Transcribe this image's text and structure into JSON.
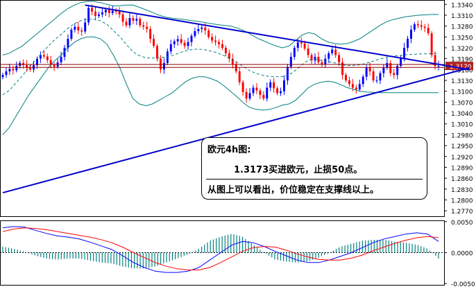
{
  "colors": {
    "background": "#ffffff",
    "up_candle": "#0000ff",
    "down_candle": "#ff0000",
    "bollinger": "#008080",
    "trendline": "#0000cc",
    "price_marker_bg": "#b22222",
    "macd_line": "#0000ff",
    "signal_line": "#ff0000",
    "histogram": "#008080",
    "axis_text": "#000000"
  },
  "annotation": {
    "title": "欧元4h图:",
    "line1": "1.3173买进欧元，止损50点。",
    "line2": "从图上可以看出，价位稳定在支撑线以上。"
  },
  "chart_data": [
    {
      "type": "candlestick",
      "title": "",
      "y_ticks": [
        "1.3340",
        "1.3310",
        "1.3280",
        "1.3250",
        "1.3220",
        "1.3190",
        "1.3160",
        "1.3130",
        "1.3100",
        "1.3070",
        "1.3040",
        "1.3010",
        "1.2980",
        "1.2950",
        "1.2920",
        "1.2890",
        "1.2860",
        "1.2830",
        "1.2800",
        "1.2770"
      ],
      "ylim": [
        1.2755,
        1.3352
      ],
      "current_price_label": "1.3170",
      "current_price": 1.317,
      "grid": false,
      "candles_close": [
        1.3145,
        1.3155,
        1.3162,
        1.3158,
        1.317,
        1.3178,
        1.3172,
        1.3165,
        1.316,
        1.3172,
        1.319,
        1.32,
        1.3196,
        1.3186,
        1.3173,
        1.3168,
        1.318,
        1.3195,
        1.322,
        1.3245,
        1.327,
        1.3278,
        1.3268,
        1.3265,
        1.329,
        1.333,
        1.332,
        1.3308,
        1.3312,
        1.3318,
        1.3325,
        1.3316,
        1.3322,
        1.332,
        1.3312,
        1.3292,
        1.3282,
        1.3302,
        1.3295,
        1.33,
        1.3282,
        1.3278,
        1.3272,
        1.3245,
        1.3225,
        1.319,
        1.316,
        1.3178,
        1.321,
        1.323,
        1.3238,
        1.3244,
        1.3234,
        1.3225,
        1.3236,
        1.3253,
        1.3266,
        1.3272,
        1.3276,
        1.3268,
        1.325,
        1.324,
        1.3236,
        1.323,
        1.322,
        1.3205,
        1.319,
        1.3175,
        1.3155,
        1.3125,
        1.3098,
        1.308,
        1.3095,
        1.311,
        1.3102,
        1.309,
        1.308,
        1.311,
        1.3125,
        1.3108,
        1.3095,
        1.31,
        1.313,
        1.3168,
        1.3195,
        1.322,
        1.3235,
        1.3232,
        1.3218,
        1.32,
        1.3185,
        1.3195,
        1.318,
        1.3175,
        1.319,
        1.3205,
        1.3215,
        1.32,
        1.318,
        1.3145,
        1.313,
        1.312,
        1.311,
        1.3105,
        1.312,
        1.314,
        1.3165,
        1.3155,
        1.313,
        1.313,
        1.315,
        1.3165,
        1.3178,
        1.315,
        1.3145,
        1.317,
        1.319,
        1.322,
        1.3245,
        1.327,
        1.3285,
        1.3282,
        1.3278,
        1.3275,
        1.326,
        1.32,
        1.317,
        1.317
      ],
      "upper_band": [
        1.32,
        1.3205,
        1.3215,
        1.3225,
        1.324,
        1.3255,
        1.327,
        1.3285,
        1.33,
        1.3315,
        1.3328,
        1.3338,
        1.3345,
        1.3348,
        1.3348,
        1.3345,
        1.334,
        1.3336,
        1.3336,
        1.3338,
        1.3338,
        1.3332,
        1.3325,
        1.3318,
        1.331,
        1.3305,
        1.3302,
        1.33,
        1.3298,
        1.3295,
        1.3293,
        1.329,
        1.3287,
        1.3284,
        1.3282,
        1.328,
        1.3275,
        1.3268,
        1.3258,
        1.3248,
        1.324,
        1.3232,
        1.3225,
        1.322,
        1.3225,
        1.324,
        1.3255,
        1.3262,
        1.3258,
        1.3245,
        1.3236,
        1.3232,
        1.323,
        1.3232,
        1.3238,
        1.3246,
        1.3258,
        1.327,
        1.3282,
        1.3292,
        1.3298,
        1.3302,
        1.3306,
        1.3308,
        1.331,
        1.3311,
        1.3312,
        1.3312
      ],
      "lower_band": [
        1.298,
        1.3,
        1.303,
        1.306,
        1.309,
        1.3115,
        1.314,
        1.3165,
        1.3185,
        1.32,
        1.322,
        1.3235,
        1.3245,
        1.325,
        1.325,
        1.3245,
        1.323,
        1.32,
        1.3165,
        1.312,
        1.308,
        1.3065,
        1.306,
        1.3065,
        1.3075,
        1.3085,
        1.3095,
        1.311,
        1.3125,
        1.3135,
        1.314,
        1.314,
        1.3135,
        1.3128,
        1.3115,
        1.31,
        1.3085,
        1.3068,
        1.3055,
        1.305,
        1.3048,
        1.305,
        1.3055,
        1.3062,
        1.3065,
        1.3075,
        1.3092,
        1.311,
        1.312,
        1.3125,
        1.3128,
        1.3125,
        1.3118,
        1.311,
        1.3105,
        1.31,
        1.3098,
        1.3097,
        1.3096,
        1.3096,
        1.3096,
        1.3096,
        1.3096,
        1.3096,
        1.3096,
        1.3096,
        1.3096,
        1.3096
      ],
      "trendline_resistance": {
        "start": {
          "bar": 24,
          "price": 1.3338
        },
        "end": {
          "bar": 136,
          "price": 1.316
        }
      },
      "trendline_support": {
        "start": {
          "bar": 0,
          "price": 1.282
        },
        "end": {
          "bar": 136,
          "price": 1.3165
        }
      }
    },
    {
      "type": "macd",
      "y_ticks": [
        "0.0050",
        "0.0000",
        "-0.0050"
      ],
      "ylim": [
        -0.0052,
        0.0052
      ],
      "macd": [
        0.004,
        0.0042,
        0.0041,
        0.0036,
        0.0031,
        0.0027,
        0.0025,
        0.0022,
        0.0017,
        0.0011,
        0.0005,
        -0.0005,
        -0.0016,
        -0.0024,
        -0.003,
        -0.0032,
        -0.0032,
        -0.003,
        -0.0024,
        -0.0012,
        0.0,
        0.0012,
        0.0018,
        0.0016,
        0.001,
        0.0002,
        -0.0005,
        -0.0012,
        -0.0016,
        -0.0016,
        -0.0012,
        -0.0006,
        0.0,
        0.0008,
        0.0016,
        0.0022,
        0.0026,
        0.003,
        0.0032,
        0.003,
        0.0018
      ],
      "signal": [
        0.0034,
        0.0038,
        0.004,
        0.0039,
        0.0037,
        0.0034,
        0.0031,
        0.0028,
        0.0025,
        0.0021,
        0.0016,
        0.0009,
        0.0,
        -0.0008,
        -0.0016,
        -0.0022,
        -0.0026,
        -0.0028,
        -0.0028,
        -0.0024,
        -0.0016,
        -0.0007,
        0.0002,
        0.0008,
        0.001,
        0.0009,
        0.0004,
        -0.0002,
        -0.0007,
        -0.0011,
        -0.0012,
        -0.0012,
        -0.0009,
        -0.0004,
        0.0003,
        0.0009,
        0.0015,
        0.002,
        0.0024,
        0.0026,
        0.0024
      ]
    }
  ]
}
